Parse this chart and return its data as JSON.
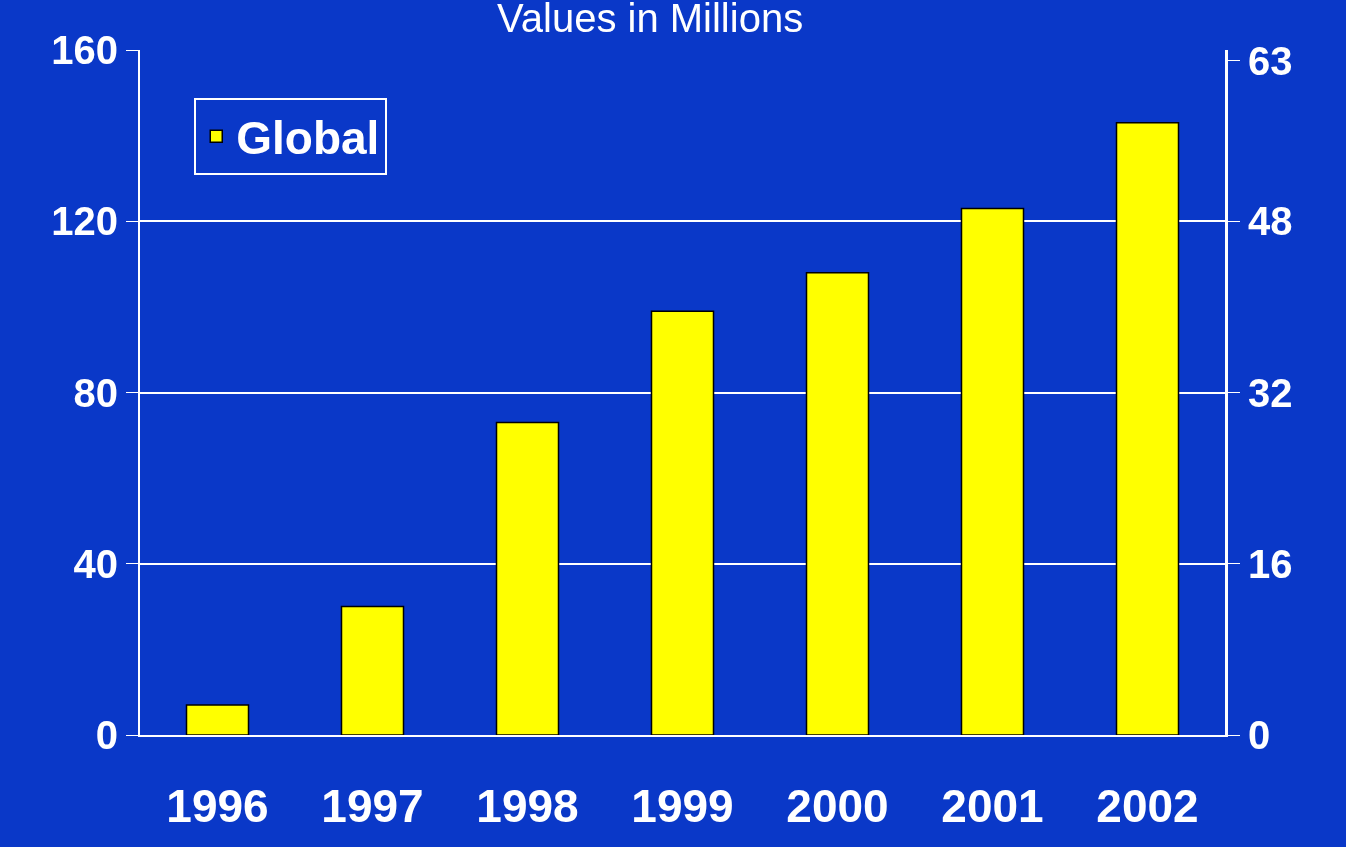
{
  "chart_data": {
    "type": "bar",
    "title": "Values in Millions",
    "categories": [
      "1996",
      "1997",
      "1998",
      "1999",
      "2000",
      "2001",
      "2002"
    ],
    "series": [
      {
        "name": "Global",
        "color": "#ffff00",
        "values": [
          7,
          30,
          73,
          99,
          108,
          123,
          143
        ]
      }
    ],
    "ylim": [
      0,
      160
    ],
    "yticks": [
      0,
      40,
      80,
      120,
      160
    ],
    "y2lim": [
      0,
      64
    ],
    "y2ticks": [
      0,
      16,
      32,
      48,
      63
    ],
    "grid": "y",
    "legend": "top left"
  }
}
